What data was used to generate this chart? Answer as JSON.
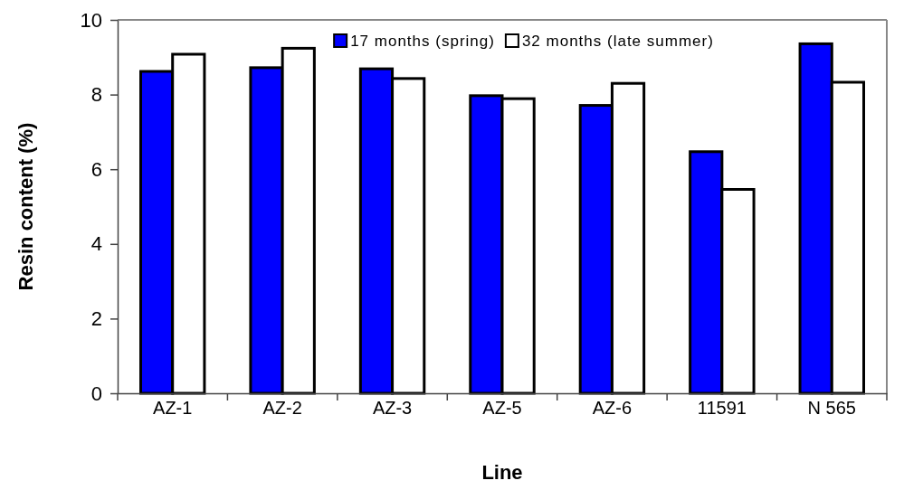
{
  "chart_data": {
    "type": "bar",
    "xlabel": "Line",
    "ylabel": "Resin content (%)",
    "categories": [
      "AZ-1",
      "AZ-2",
      "AZ-3",
      "AZ-5",
      "AZ-6",
      "11591",
      "N 565"
    ],
    "series": [
      {
        "name": "17 months (spring)",
        "color": "#0000ff",
        "values": [
          8.62,
          8.72,
          8.69,
          7.97,
          7.71,
          6.47,
          9.36
        ]
      },
      {
        "name": "32 months (late summer)",
        "color": "#ffffff",
        "values": [
          9.08,
          9.24,
          8.43,
          7.89,
          8.3,
          5.46,
          8.33
        ]
      }
    ],
    "ylim": [
      0,
      10
    ],
    "yticks": [
      0,
      2,
      4,
      6,
      8,
      10
    ],
    "legend": "top",
    "grid": false
  }
}
